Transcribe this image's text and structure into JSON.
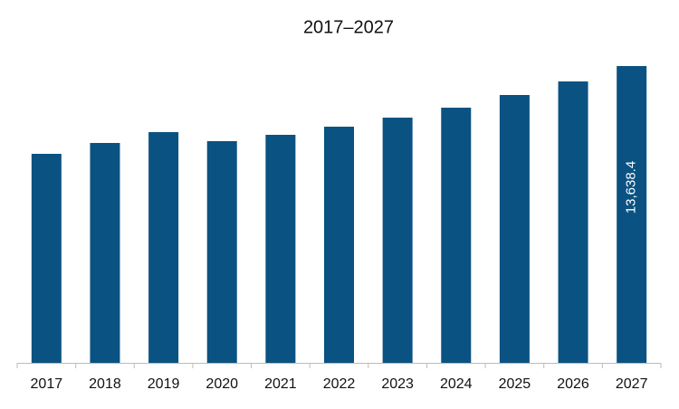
{
  "chart_data": {
    "type": "bar",
    "title": "2017–2027",
    "categories": [
      "2017",
      "2018",
      "2019",
      "2020",
      "2021",
      "2022",
      "2023",
      "2024",
      "2025",
      "2026",
      "2027"
    ],
    "values": [
      9605,
      10104,
      10603,
      10187,
      10478,
      10852,
      11268,
      11726,
      12308,
      12931,
      13638.4
    ],
    "value_labels": [
      null,
      null,
      null,
      null,
      null,
      null,
      null,
      null,
      null,
      null,
      "13,638.4"
    ],
    "color": "#0a5282"
  }
}
